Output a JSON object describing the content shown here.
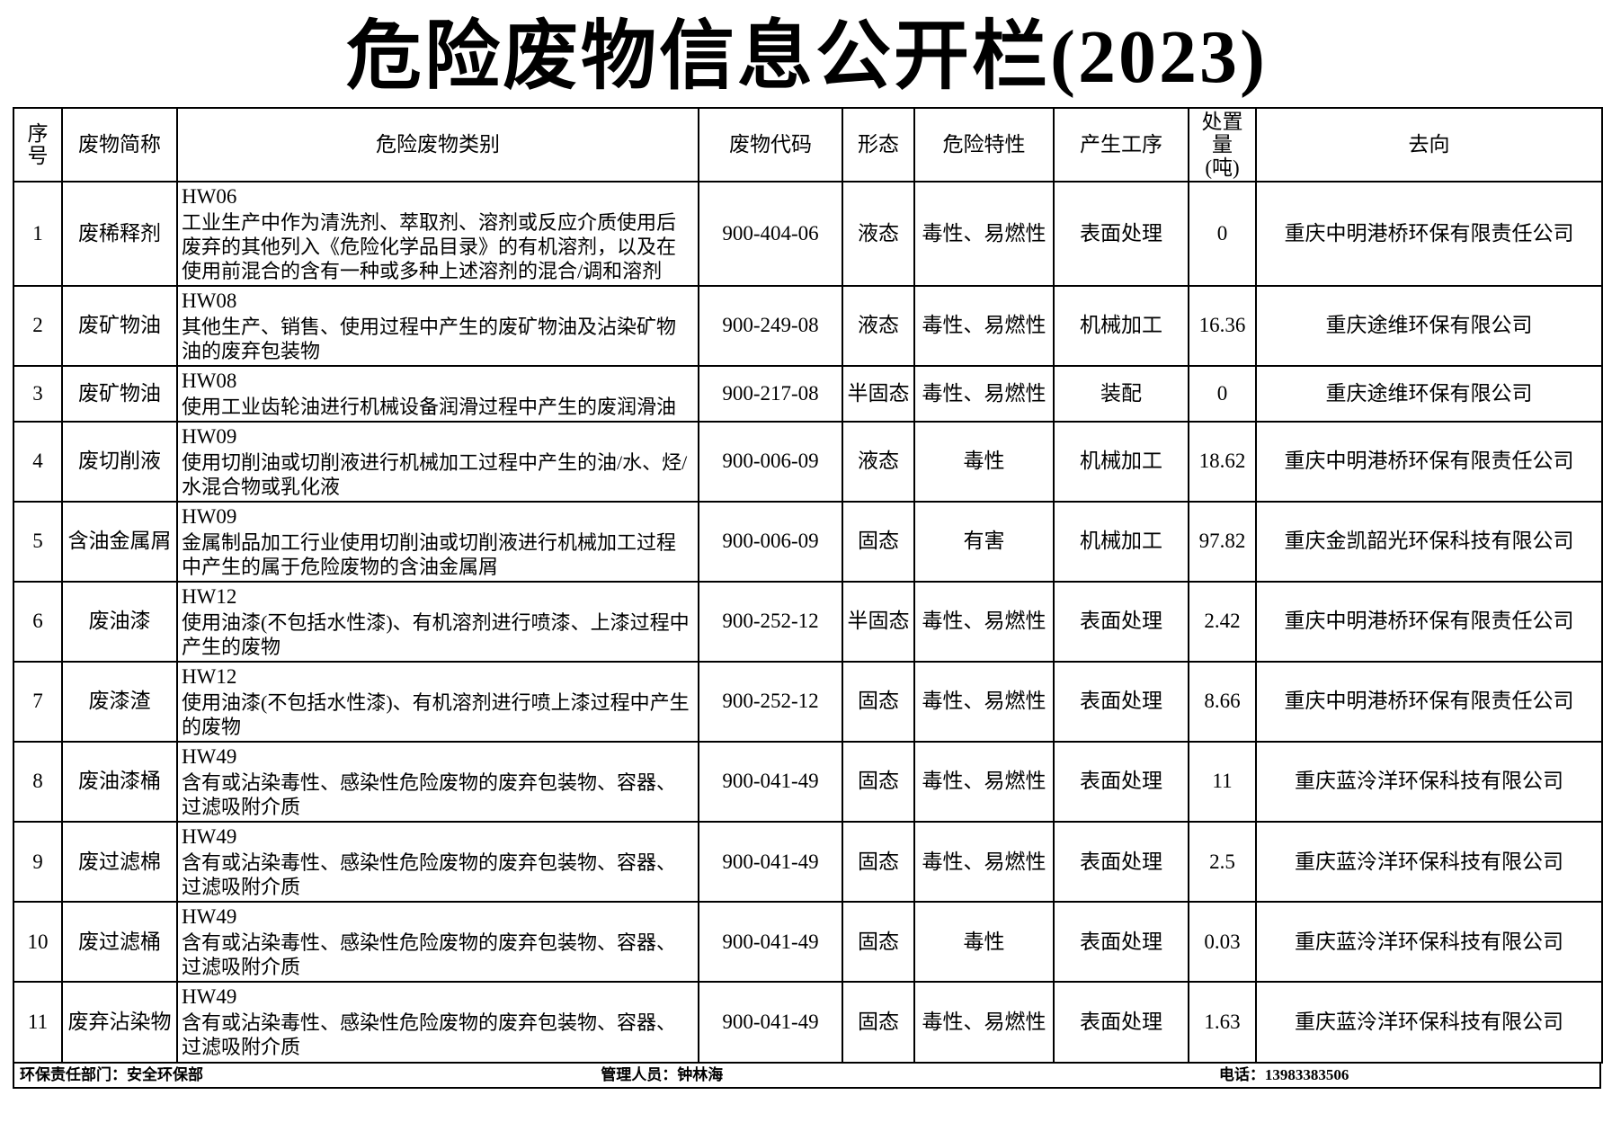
{
  "title": "危险废物信息公开栏(2023)",
  "table": {
    "headers": {
      "no": "序号",
      "name": "废物简称",
      "category": "危险废物类别",
      "code": "废物代码",
      "form": "形态",
      "hazard": "危险特性",
      "process": "产生工序",
      "amount": "处置量\n(吨)",
      "destination": "去向"
    },
    "rows": [
      {
        "no": "1",
        "name": "废稀释剂",
        "hw": "HW06",
        "category": "工业生产中作为清洗剂、萃取剂、溶剂或反应介质使用后废弃的其他列入《危险化学品目录》的有机溶剂，以及在使用前混合的含有一种或多种上述溶剂的混合/调和溶剂",
        "code": "900-404-06",
        "form": "液态",
        "hazard": "毒性、易燃性",
        "process": "表面处理",
        "amount": "0",
        "destination": "重庆中明港桥环保有限责任公司",
        "lines": 4
      },
      {
        "no": "2",
        "name": "废矿物油",
        "hw": "HW08",
        "category": "其他生产、销售、使用过程中产生的废矿物油及沾染矿物油的废弃包装物",
        "code": "900-249-08",
        "form": "液态",
        "hazard": "毒性、易燃性",
        "process": "机械加工",
        "amount": "16.36",
        "destination": "重庆途维环保有限公司",
        "lines": 3
      },
      {
        "no": "3",
        "name": "废矿物油",
        "hw": "HW08",
        "category": "使用工业齿轮油进行机械设备润滑过程中产生的废润滑油",
        "code": "900-217-08",
        "form": "半固态",
        "hazard": "毒性、易燃性",
        "process": "装配",
        "amount": "0",
        "destination": "重庆途维环保有限公司",
        "lines": 2
      },
      {
        "no": "4",
        "name": "废切削液",
        "hw": "HW09",
        "category": "使用切削油或切削液进行机械加工过程中产生的油/水、烃/水混合物或乳化液",
        "code": "900-006-09",
        "form": "液态",
        "hazard": "毒性",
        "process": "机械加工",
        "amount": "18.62",
        "destination": "重庆中明港桥环保有限责任公司",
        "lines": 3
      },
      {
        "no": "5",
        "name": "含油金属屑",
        "hw": "HW09",
        "category": "金属制品加工行业使用切削油或切削液进行机械加工过程中产生的属于危险废物的含油金属屑",
        "code": "900-006-09",
        "form": "固态",
        "hazard": "有害",
        "process": "机械加工",
        "amount": "97.82",
        "destination": "重庆金凯韶光环保科技有限公司",
        "lines": 3
      },
      {
        "no": "6",
        "name": "废油漆",
        "hw": "HW12",
        "category": "使用油漆(不包括水性漆)、有机溶剂进行喷漆、上漆过程中产生的废物",
        "code": "900-252-12",
        "form": "半固态",
        "hazard": "毒性、易燃性",
        "process": "表面处理",
        "amount": "2.42",
        "destination": "重庆中明港桥环保有限责任公司",
        "lines": 3
      },
      {
        "no": "7",
        "name": "废漆渣",
        "hw": "HW12",
        "category": "使用油漆(不包括水性漆)、有机溶剂进行喷上漆过程中产生的废物",
        "code": "900-252-12",
        "form": "固态",
        "hazard": "毒性、易燃性",
        "process": "表面处理",
        "amount": "8.66",
        "destination": "重庆中明港桥环保有限责任公司",
        "lines": 3
      },
      {
        "no": "8",
        "name": "废油漆桶",
        "hw": "HW49",
        "category": "含有或沾染毒性、感染性危险废物的废弃包装物、容器、过滤吸附介质",
        "code": "900-041-49",
        "form": "固态",
        "hazard": "毒性、易燃性",
        "process": "表面处理",
        "amount": "11",
        "destination": "重庆蓝泠洋环保科技有限公司",
        "lines": 3
      },
      {
        "no": "9",
        "name": "废过滤棉",
        "hw": "HW49",
        "category": "含有或沾染毒性、感染性危险废物的废弃包装物、容器、过滤吸附介质",
        "code": "900-041-49",
        "form": "固态",
        "hazard": "毒性、易燃性",
        "process": "表面处理",
        "amount": "2.5",
        "destination": "重庆蓝泠洋环保科技有限公司",
        "lines": 3
      },
      {
        "no": "10",
        "name": "废过滤桶",
        "hw": "HW49",
        "category": "含有或沾染毒性、感染性危险废物的废弃包装物、容器、过滤吸附介质",
        "code": "900-041-49",
        "form": "固态",
        "hazard": "毒性",
        "process": "表面处理",
        "amount": "0.03",
        "destination": "重庆蓝泠洋环保科技有限公司",
        "lines": 3
      },
      {
        "no": "11",
        "name": "废弃沾染物",
        "hw": "HW49",
        "category": "含有或沾染毒性、感染性危险废物的废弃包装物、容器、过滤吸附介质",
        "code": "900-041-49",
        "form": "固态",
        "hazard": "毒性、易燃性",
        "process": "表面处理",
        "amount": "1.63",
        "destination": "重庆蓝泠洋环保科技有限公司",
        "lines": 3
      }
    ]
  },
  "footer": {
    "department": "环保责任部门：安全环保部",
    "manager": "管理人员：钟林海",
    "phone": "电话：13983383506"
  }
}
